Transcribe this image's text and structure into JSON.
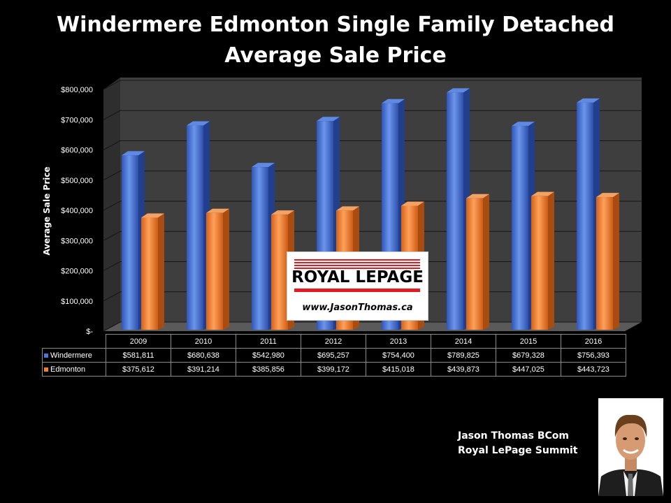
{
  "header": {
    "title_line1": "Windermere Edmonton Single Family Detached",
    "title_line2": "Average Sale Price"
  },
  "chart_data": {
    "type": "bar",
    "title": "Windermere Edmonton Single Family Detached Average Sale Price",
    "ylabel": "Average Sale Price",
    "xlabel": "",
    "ylim": [
      0,
      800000
    ],
    "y_ticks": [
      "$-",
      "$100,000",
      "$200,000",
      "$300,000",
      "$400,000",
      "$500,000",
      "$600,000",
      "$700,000",
      "$800,000"
    ],
    "categories": [
      "2009",
      "2010",
      "2011",
      "2012",
      "2013",
      "2014",
      "2015",
      "2016"
    ],
    "series": [
      {
        "name": "Windermere",
        "color": "#4a77d6",
        "values": [
          581811,
          680638,
          542980,
          695257,
          754400,
          789825,
          679328,
          756393
        ],
        "labels": [
          "$581,811",
          "$680,638",
          "$542,980",
          "$695,257",
          "$754,400",
          "$789,825",
          "$679,328",
          "$756,393"
        ]
      },
      {
        "name": "Edmonton",
        "color": "#f07f2e",
        "values": [
          375612,
          391214,
          385856,
          399172,
          415018,
          439873,
          447025,
          443723
        ],
        "labels": [
          "$375,612",
          "$391,214",
          "$385,856",
          "$399,172",
          "$415,018",
          "$439,873",
          "$447,025",
          "$443,723"
        ]
      }
    ],
    "grid": true,
    "legend": "data-table"
  },
  "logo": {
    "brand": "ROYAL LEPAGE",
    "website": "www.JasonThomas.ca"
  },
  "agent": {
    "name": "Jason Thomas BCom",
    "company": "Royal LePage Summit"
  }
}
